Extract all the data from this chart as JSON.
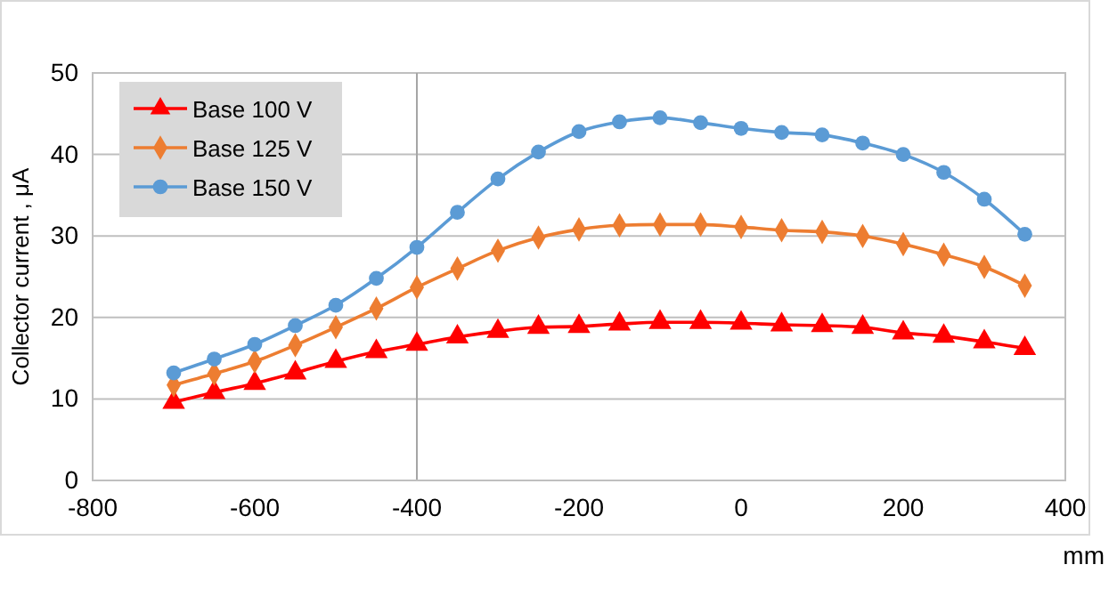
{
  "chart_data": {
    "type": "line",
    "ylabel": "Collector current , μA",
    "xlabel": "mm",
    "x": [
      -700,
      -650,
      -600,
      -550,
      -500,
      -450,
      -400,
      -350,
      -300,
      -250,
      -200,
      -150,
      -100,
      -50,
      0,
      50,
      100,
      150,
      200,
      250,
      300,
      350
    ],
    "series": [
      {
        "name": "Base 100 V",
        "color": "#ff0000",
        "marker": "triangle",
        "values": [
          9.6,
          10.8,
          11.9,
          13.2,
          14.6,
          15.8,
          16.7,
          17.6,
          18.3,
          18.8,
          18.9,
          19.2,
          19.4,
          19.4,
          19.3,
          19.1,
          19.0,
          18.8,
          18.1,
          17.7,
          17.0,
          16.2
        ]
      },
      {
        "name": "Base 125 V",
        "color": "#ed7d31",
        "marker": "diamond",
        "values": [
          11.7,
          13.1,
          14.6,
          16.6,
          18.8,
          21.1,
          23.7,
          26.0,
          28.2,
          29.8,
          30.8,
          31.3,
          31.4,
          31.4,
          31.1,
          30.7,
          30.5,
          30.0,
          29.0,
          27.7,
          26.2,
          23.9
        ]
      },
      {
        "name": "Base 150 V",
        "color": "#5b9bd5",
        "marker": "circle",
        "values": [
          13.2,
          14.9,
          16.7,
          19.0,
          21.5,
          24.8,
          28.6,
          32.9,
          37.0,
          40.3,
          42.8,
          44.0,
          44.5,
          43.9,
          43.2,
          42.7,
          42.4,
          41.4,
          40.0,
          37.8,
          34.5,
          30.2
        ]
      }
    ],
    "xlim": [
      -800,
      400
    ],
    "xticks": [
      -800,
      -600,
      -400,
      -200,
      0,
      200,
      400
    ],
    "ylim": [
      0,
      50
    ],
    "yticks": [
      0,
      10,
      20,
      30,
      40,
      50
    ],
    "grid": "y",
    "legend": "top left",
    "line_style": "solid",
    "ref_lines": [
      {
        "axis": "x",
        "value": -400,
        "color": "#a6a6a6"
      }
    ]
  }
}
